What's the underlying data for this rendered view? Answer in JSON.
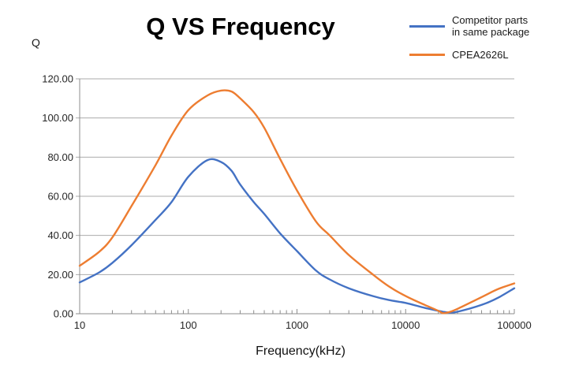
{
  "chart_data": {
    "type": "line",
    "title": "Q VS Frequency",
    "xlabel": "Frequency(kHz)",
    "ylabel": "Q",
    "x_scale": "log",
    "xlim": [
      10,
      100000
    ],
    "ylim": [
      0,
      120
    ],
    "x_tick_labels": [
      "10",
      "100",
      "1000",
      "10000",
      "100000"
    ],
    "y_tick_labels": [
      "0.00",
      "20.00",
      "40.00",
      "60.00",
      "80.00",
      "100.00",
      "120.00"
    ],
    "grid": "horizontal-gridlines",
    "legend_position": "top-right",
    "x": [
      10,
      15,
      20,
      30,
      50,
      70,
      100,
      150,
      200,
      250,
      300,
      400,
      500,
      700,
      1000,
      1500,
      2000,
      3000,
      5000,
      7000,
      10000,
      15000,
      20000,
      22000,
      25000,
      30000,
      50000,
      70000,
      100000
    ],
    "series": [
      {
        "name": "Competitor parts in same package",
        "color": "#4472C4",
        "values": [
          16,
          21,
          26,
          35,
          48,
          57,
          70,
          78.5,
          77.5,
          73,
          66,
          57,
          51,
          41,
          32,
          22,
          17.5,
          13,
          9,
          7,
          5.5,
          3,
          1.5,
          1,
          0.6,
          1,
          4.5,
          8,
          13
        ]
      },
      {
        "name": "CPEA2626L",
        "color": "#ED7D31",
        "values": [
          24.5,
          31.5,
          39,
          55,
          76,
          91,
          104,
          111.5,
          114,
          113.5,
          110,
          103,
          95,
          79,
          63,
          47,
          40,
          30,
          20,
          14,
          9,
          4.5,
          1.5,
          0.3,
          0.8,
          2.5,
          8.5,
          12.5,
          15.5
        ]
      }
    ]
  },
  "legend": {
    "items": [
      {
        "label_lines": [
          "Competitor parts",
          "in same package"
        ],
        "color": "#4472C4"
      },
      {
        "label_lines": [
          "CPEA2626L"
        ],
        "color": "#ED7D31"
      }
    ]
  },
  "colors": {
    "gridline": "#ABABAB",
    "axis": "#8C8C8C",
    "tick_text": "#262626"
  }
}
